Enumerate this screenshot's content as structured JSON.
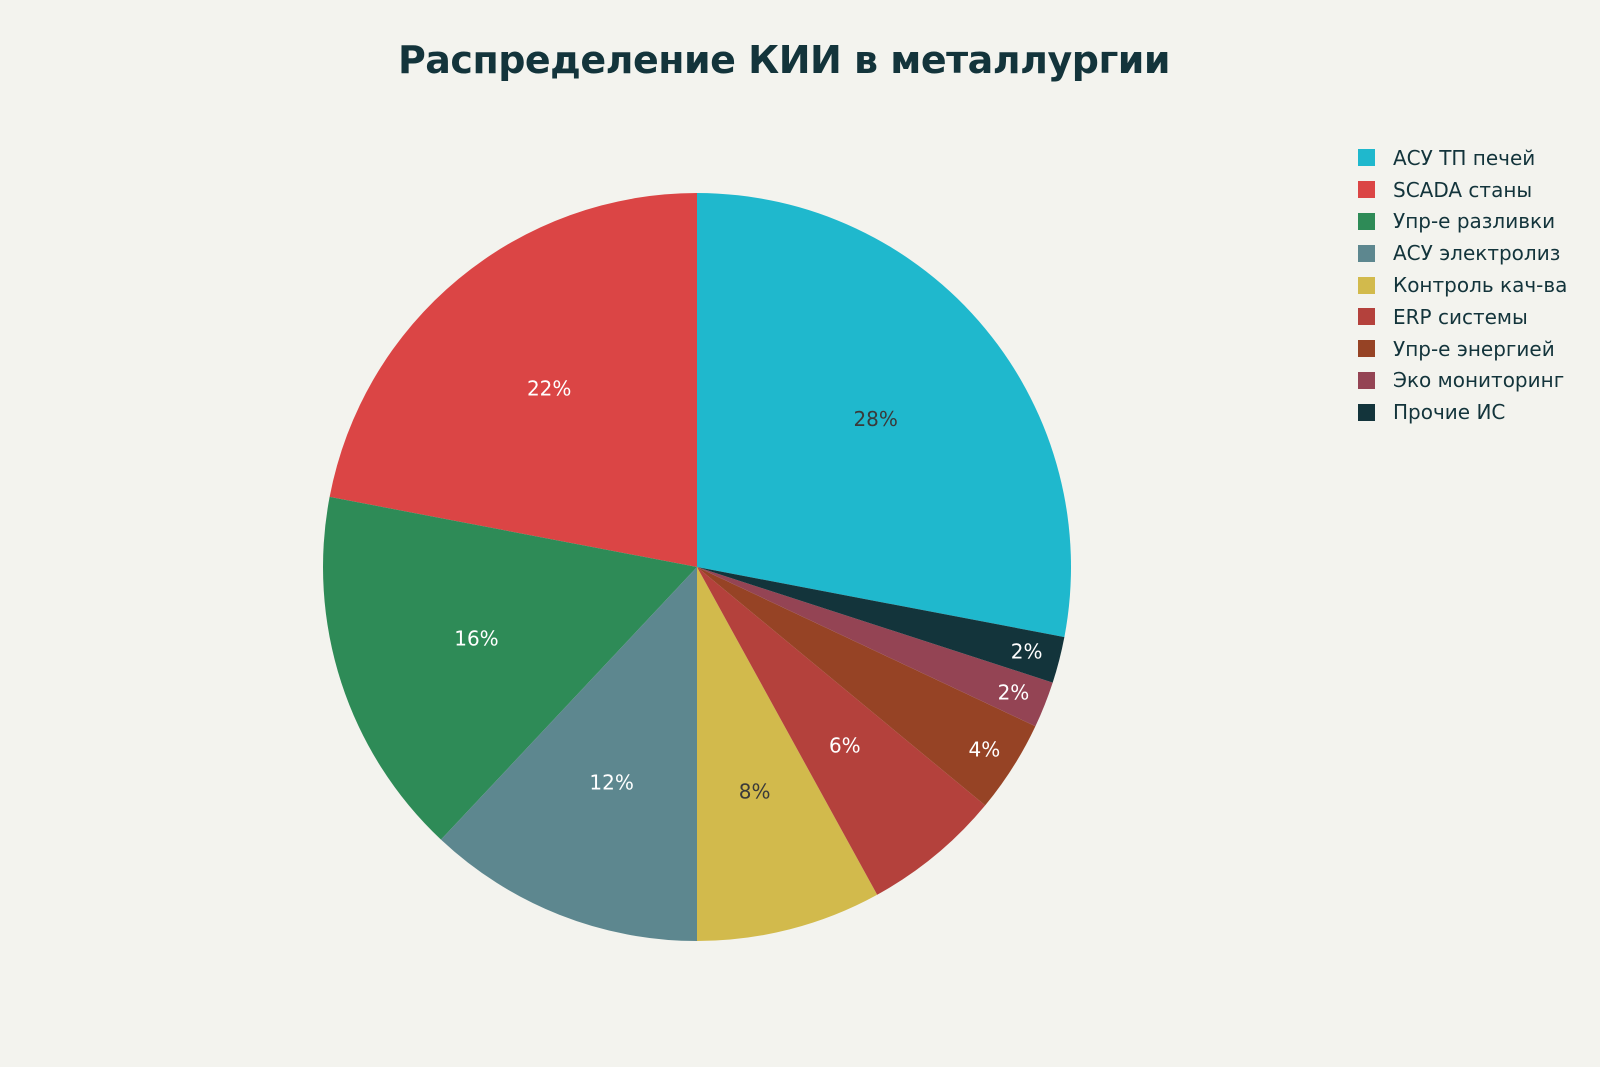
{
  "title": "Распределение КИИ в металлургии",
  "legend": [
    {
      "label": "АСУ ТП печей",
      "color": "#1fb8cd"
    },
    {
      "label": "SCADA станы",
      "color": "#db4545"
    },
    {
      "label": "Упр-е разливки",
      "color": "#2e8b57"
    },
    {
      "label": "АСУ электролиз",
      "color": "#5d878f"
    },
    {
      "label": "Контроль кач-ва",
      "color": "#d2ba4c"
    },
    {
      "label": "ERP системы",
      "color": "#b4413c"
    },
    {
      "label": "Упр-е энергией",
      "color": "#964325"
    },
    {
      "label": "Эко мониторинг",
      "color": "#944454"
    },
    {
      "label": "Прочие ИС",
      "color": "#13343b"
    }
  ],
  "chart_data": {
    "type": "pie",
    "title": "Распределение КИИ в металлургии",
    "categories": [
      "АСУ ТП печей",
      "SCADA станы",
      "Упр-е разливки",
      "АСУ электролиз",
      "Контроль кач-ва",
      "ERP системы",
      "Упр-е энергией",
      "Эко мониторинг",
      "Прочие ИС"
    ],
    "values": [
      28,
      22,
      16,
      12,
      8,
      6,
      4,
      2,
      2
    ],
    "labels": [
      "28%",
      "22%",
      "16%",
      "12%",
      "8%",
      "6%",
      "4%",
      "2%",
      "2%"
    ],
    "colors": [
      "#1fb8cd",
      "#db4545",
      "#2e8b57",
      "#5d878f",
      "#d2ba4c",
      "#b4413c",
      "#964325",
      "#944454",
      "#13343b"
    ],
    "label_colors": [
      "#3a3a3a",
      "#ffffff",
      "#ffffff",
      "#ffffff",
      "#3a3a3a",
      "#ffffff",
      "#ffffff",
      "#ffffff",
      "#ffffff"
    ],
    "legend_position": "right"
  }
}
